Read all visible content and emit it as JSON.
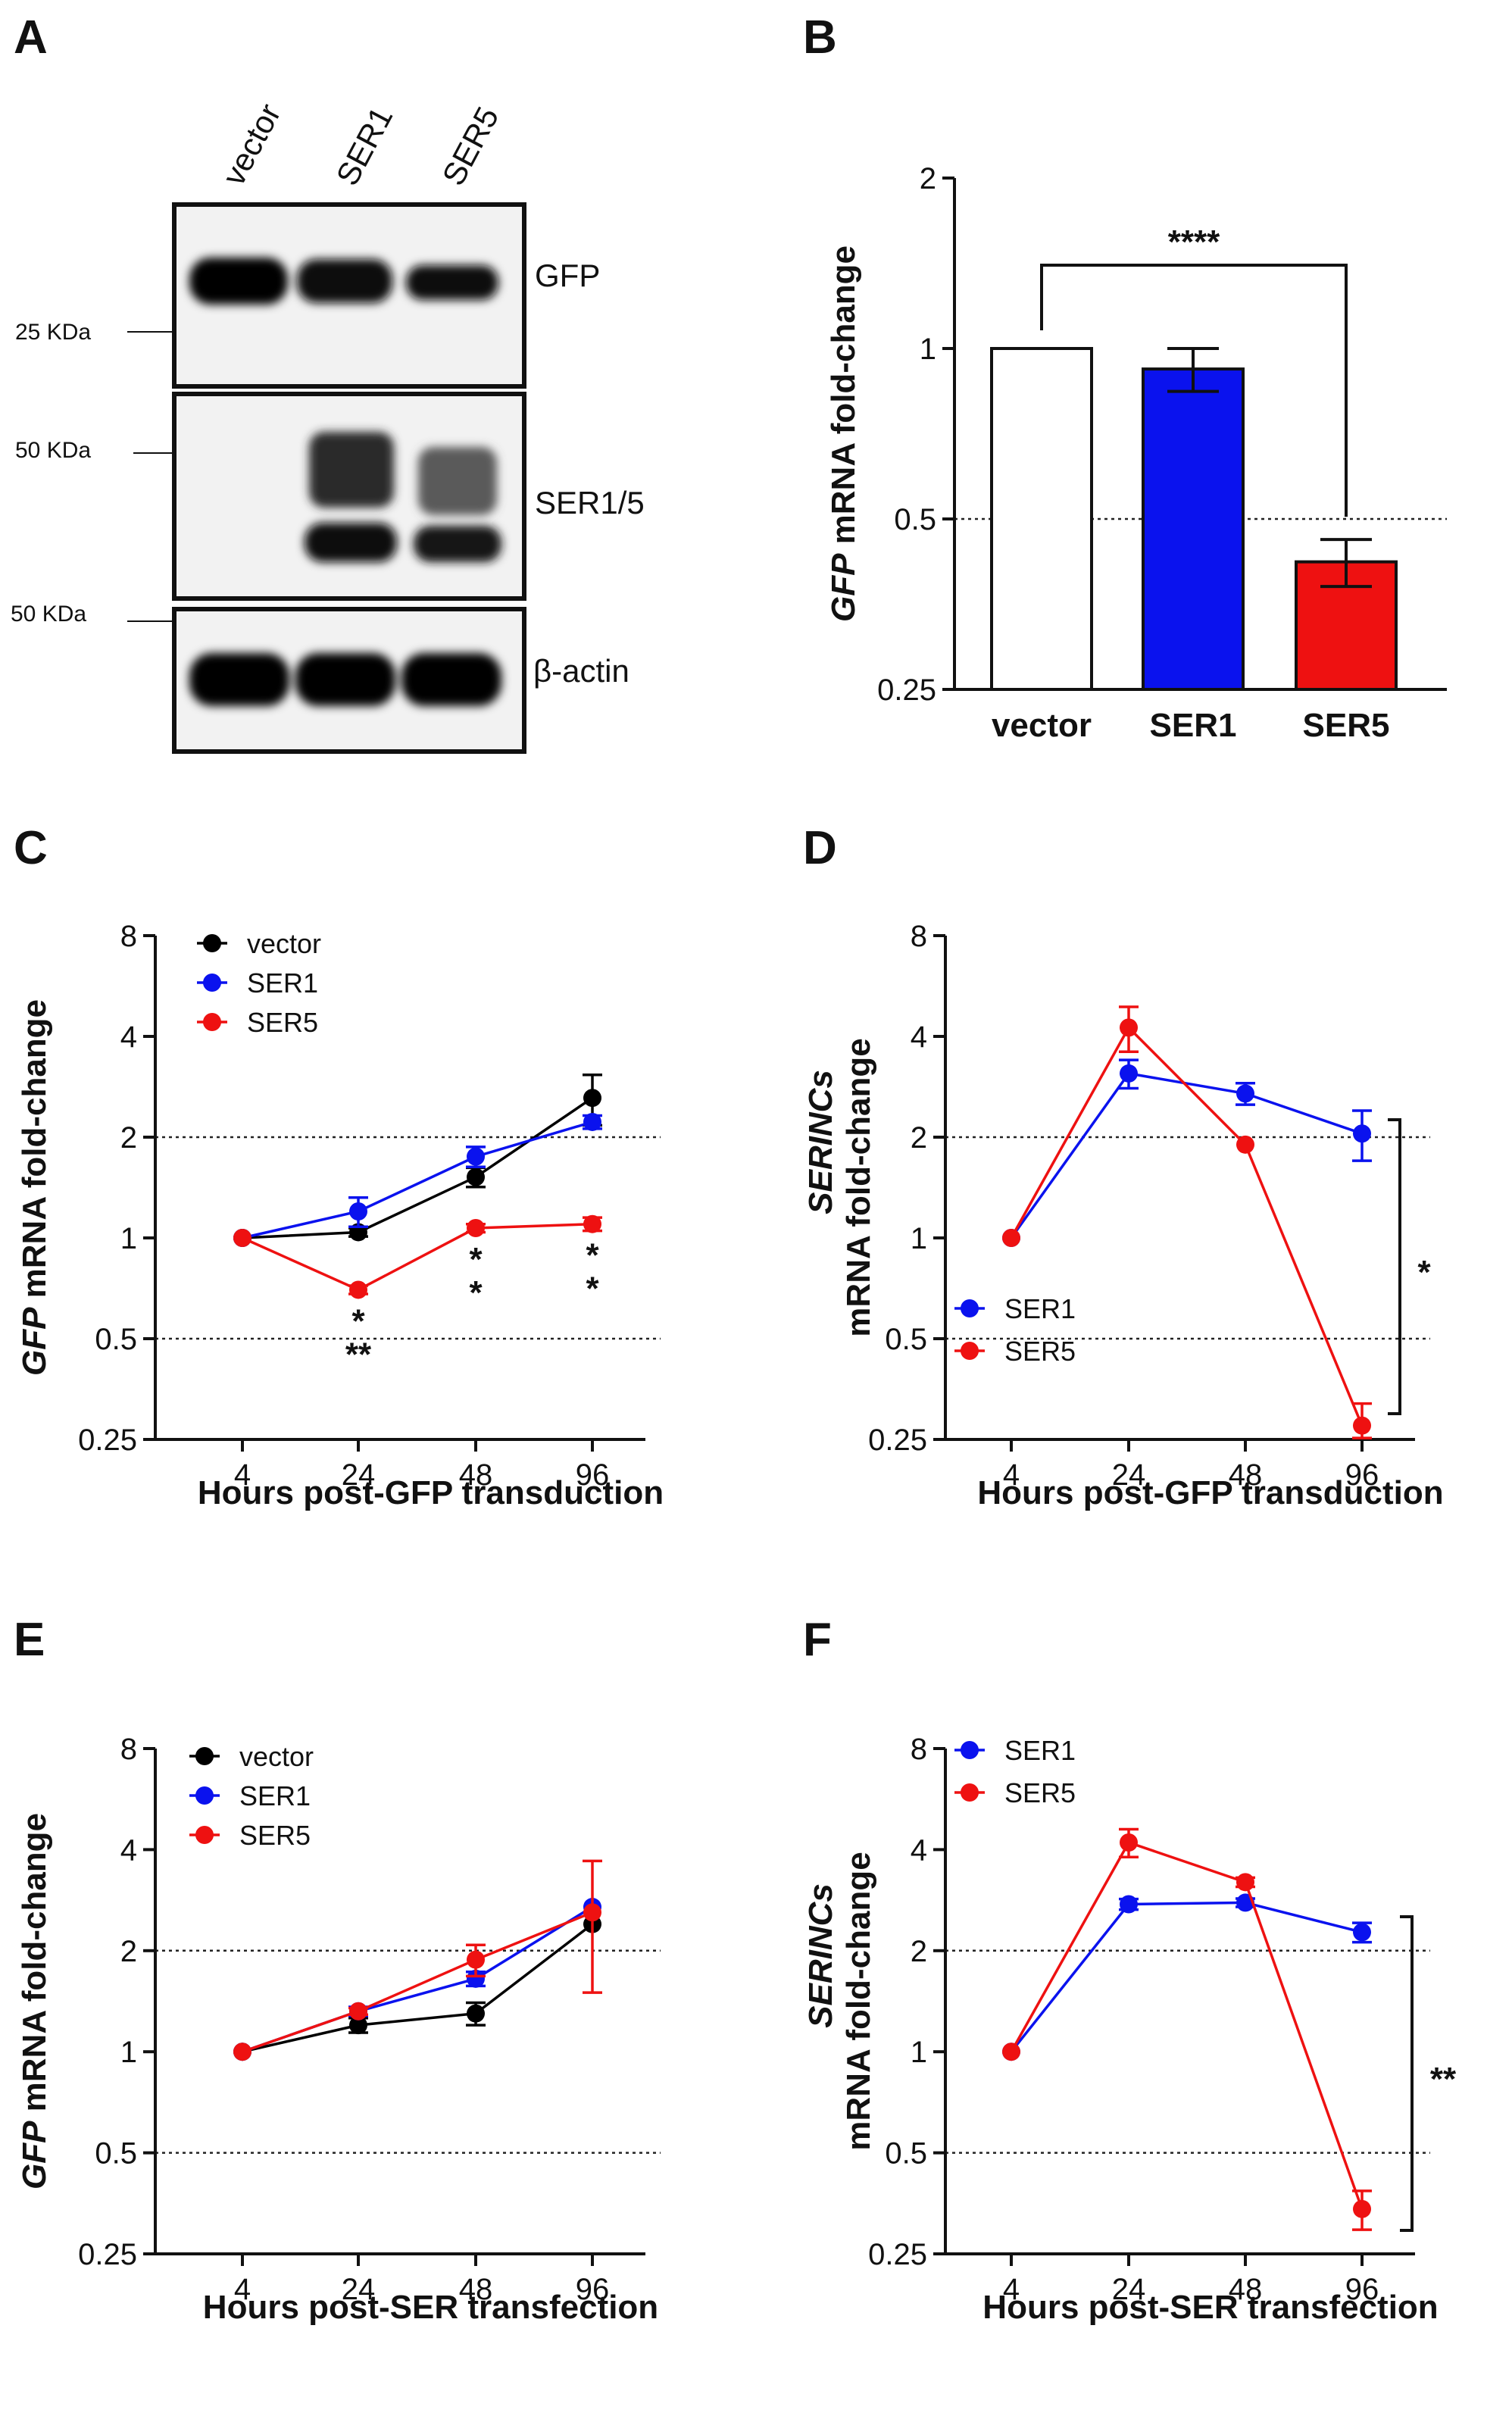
{
  "panel_labels": [
    "A",
    "B",
    "C",
    "D",
    "E",
    "F"
  ],
  "colors": {
    "vector": "#000000",
    "SER1": "#0a12ee",
    "SER5": "#ee1111"
  },
  "chart_data": [
    {
      "panel": "A",
      "type": "western-blot",
      "lanes": [
        "vector",
        "SER1",
        "SER5"
      ],
      "bands": [
        "GFP",
        "SER1/5",
        "β-actin"
      ],
      "markers": [
        "25 KDa",
        "50 KDa",
        "50 KDa"
      ]
    },
    {
      "panel": "B",
      "type": "bar",
      "categories": [
        "vector",
        "SER1",
        "SER5"
      ],
      "values": [
        1.0,
        0.92,
        0.42
      ],
      "errors": [
        0,
        0.08,
        0.04
      ],
      "bar_colors": [
        "#ffffff",
        "#0a12ee",
        "#ee1111"
      ],
      "ylabel_italic": "GFP",
      "ylabel": " mRNA fold-change",
      "yscale": "log2",
      "ylim": [
        0.25,
        2
      ],
      "yticks": [
        0.25,
        0.5,
        1,
        2
      ],
      "ytick_labels": [
        "0.25",
        "0.5",
        "1",
        "2"
      ],
      "reference_line": 0.5,
      "significance": "****"
    },
    {
      "panel": "C",
      "type": "line",
      "x": [
        "4",
        "24",
        "48",
        "96"
      ],
      "series": [
        {
          "name": "vector",
          "values": [
            1.0,
            1.04,
            1.52,
            2.62
          ],
          "errors": [
            0,
            0.03,
            0.1,
            0.45
          ]
        },
        {
          "name": "SER1",
          "values": [
            1.0,
            1.2,
            1.75,
            2.22
          ],
          "errors": [
            0,
            0.12,
            0.12,
            0.1
          ]
        },
        {
          "name": "SER5",
          "values": [
            1.0,
            0.7,
            1.07,
            1.1
          ],
          "errors": [
            0,
            0.02,
            0.03,
            0.05
          ]
        }
      ],
      "xlabel": "Hours post-GFP transduction",
      "ylabel_italic": "GFP",
      "ylabel": " mRNA fold-change",
      "ylim": [
        0.25,
        8
      ],
      "yticks": [
        0.25,
        0.5,
        1,
        2,
        4,
        8
      ],
      "ytick_labels": [
        "0.25",
        "0.5",
        "1",
        "2",
        "4",
        "8"
      ],
      "reference_lines": [
        0.5,
        2
      ],
      "annotations": [
        {
          "x": "24",
          "blue": "*",
          "black": "**"
        },
        {
          "x": "48",
          "blue": "*",
          "black": "*"
        },
        {
          "x": "96",
          "blue": "*",
          "black": "*"
        }
      ]
    },
    {
      "panel": "D",
      "type": "line",
      "x": [
        "4",
        "24",
        "48",
        "96"
      ],
      "series": [
        {
          "name": "SER1",
          "values": [
            1.0,
            3.1,
            2.7,
            2.05
          ],
          "errors": [
            0,
            0.3,
            0.2,
            0.35
          ]
        },
        {
          "name": "SER5",
          "values": [
            1.0,
            4.25,
            1.9,
            0.275
          ],
          "errors": [
            0,
            0.65,
            0,
            0.045
          ]
        }
      ],
      "xlabel": "Hours post-GFP transduction",
      "ylabel_italic": "SERINCs",
      "ylabel": "mRNA fold-change",
      "ylim": [
        0.25,
        8
      ],
      "yticks": [
        0.25,
        0.5,
        1,
        2,
        4,
        8
      ],
      "ytick_labels": [
        "0.25",
        "0.5",
        "1",
        "2",
        "4",
        "8"
      ],
      "reference_lines": [
        0.5,
        2
      ],
      "significance": "*"
    },
    {
      "panel": "E",
      "type": "line",
      "x": [
        "4",
        "24",
        "48",
        "96"
      ],
      "series": [
        {
          "name": "vector",
          "values": [
            1.0,
            1.2,
            1.3,
            2.4
          ],
          "errors": [
            0,
            0.06,
            0.1,
            0.0
          ]
        },
        {
          "name": "SER1",
          "values": [
            1.0,
            1.32,
            1.65,
            2.7
          ],
          "errors": [
            0,
            0.04,
            0.08,
            0.0
          ]
        },
        {
          "name": "SER5",
          "values": [
            1.0,
            1.32,
            1.88,
            2.6
          ],
          "errors": [
            0,
            0.03,
            0.2,
            1.1
          ]
        }
      ],
      "xlabel": "Hours post-SER transfection",
      "ylabel_italic": "GFP",
      "ylabel": " mRNA fold-change",
      "ylim": [
        0.25,
        8
      ],
      "yticks": [
        0.25,
        0.5,
        1,
        2,
        4,
        8
      ],
      "ytick_labels": [
        "0.25",
        "0.5",
        "1",
        "2",
        "4",
        "8"
      ],
      "reference_lines": [
        0.5,
        2
      ]
    },
    {
      "panel": "F",
      "type": "line",
      "x": [
        "4",
        "24",
        "48",
        "96"
      ],
      "series": [
        {
          "name": "SER1",
          "values": [
            1.0,
            2.75,
            2.78,
            2.27
          ],
          "errors": [
            0,
            0.1,
            0.08,
            0.15
          ]
        },
        {
          "name": "SER5",
          "values": [
            1.0,
            4.2,
            3.2,
            0.34
          ],
          "errors": [
            0,
            0.4,
            0.1,
            0.045
          ]
        }
      ],
      "xlabel": "Hours post-SER transfection",
      "ylabel_italic": "SERINCs",
      "ylabel": "mRNA fold-change",
      "ylim": [
        0.25,
        8
      ],
      "yticks": [
        0.25,
        0.5,
        1,
        2,
        4,
        8
      ],
      "ytick_labels": [
        "0.25",
        "0.5",
        "1",
        "2",
        "4",
        "8"
      ],
      "reference_lines": [
        0.5,
        2
      ],
      "significance": "**"
    }
  ]
}
